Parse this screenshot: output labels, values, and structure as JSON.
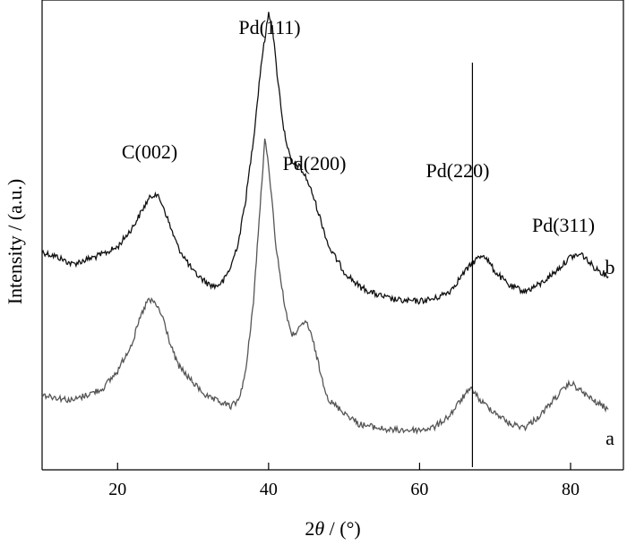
{
  "chart_data": {
    "type": "line",
    "xlabel_parts": {
      "pre": "2",
      "italic": "θ",
      "post": " / (°)"
    },
    "ylabel": "Intensity / (a.u.)",
    "xlim": [
      10,
      87
    ],
    "x_ticks": [
      20,
      40,
      60,
      80
    ],
    "y_ticks_shown": false,
    "grid": false,
    "legend": "none",
    "series": [
      {
        "name": "b",
        "color": "#111111",
        "points": [
          [
            10,
            0.1
          ],
          [
            12,
            0.0
          ],
          [
            14,
            -0.15
          ],
          [
            16,
            -0.05
          ],
          [
            18,
            0.05
          ],
          [
            20,
            0.2
          ],
          [
            22,
            0.6
          ],
          [
            24,
            1.15
          ],
          [
            25,
            1.3
          ],
          [
            26,
            1.05
          ],
          [
            27,
            0.6
          ],
          [
            28,
            0.2
          ],
          [
            30,
            -0.3
          ],
          [
            32,
            -0.55
          ],
          [
            33,
            -0.6
          ],
          [
            34,
            -0.5
          ],
          [
            35,
            -0.2
          ],
          [
            36,
            0.3
          ],
          [
            37,
            1.2
          ],
          [
            38,
            2.4
          ],
          [
            39,
            3.9
          ],
          [
            40,
            4.95
          ],
          [
            40.5,
            4.7
          ],
          [
            41,
            3.9
          ],
          [
            42,
            2.6
          ],
          [
            43,
            1.9
          ],
          [
            44,
            1.85
          ],
          [
            45,
            1.6
          ],
          [
            46,
            1.2
          ],
          [
            47,
            0.7
          ],
          [
            48,
            0.2
          ],
          [
            50,
            -0.3
          ],
          [
            52,
            -0.6
          ],
          [
            54,
            -0.75
          ],
          [
            56,
            -0.85
          ],
          [
            58,
            -0.9
          ],
          [
            60,
            -0.9
          ],
          [
            62,
            -0.85
          ],
          [
            64,
            -0.7
          ],
          [
            66,
            -0.3
          ],
          [
            67.5,
            -0.05
          ],
          [
            68.5,
            0.05
          ],
          [
            70,
            -0.3
          ],
          [
            72,
            -0.6
          ],
          [
            74,
            -0.7
          ],
          [
            76,
            -0.55
          ],
          [
            78,
            -0.3
          ],
          [
            80,
            0.0
          ],
          [
            81.5,
            0.05
          ],
          [
            83,
            -0.2
          ],
          [
            85,
            -0.4
          ]
        ]
      },
      {
        "name": "a",
        "color": "#555555",
        "points": [
          [
            10,
            0.0
          ],
          [
            12,
            -0.05
          ],
          [
            14,
            -0.1
          ],
          [
            16,
            0.0
          ],
          [
            18,
            0.1
          ],
          [
            20,
            0.4
          ],
          [
            22,
            0.9
          ],
          [
            23,
            1.3
          ],
          [
            24,
            1.6
          ],
          [
            25,
            1.55
          ],
          [
            26,
            1.3
          ],
          [
            27,
            0.85
          ],
          [
            28,
            0.5
          ],
          [
            30,
            0.2
          ],
          [
            32,
            -0.05
          ],
          [
            34,
            -0.15
          ],
          [
            35,
            -0.2
          ],
          [
            36,
            -0.1
          ],
          [
            37,
            0.4
          ],
          [
            38,
            1.6
          ],
          [
            39,
            3.4
          ],
          [
            39.5,
            4.3
          ],
          [
            40,
            3.9
          ],
          [
            41,
            2.5
          ],
          [
            42,
            1.6
          ],
          [
            43,
            1.0
          ],
          [
            44,
            1.1
          ],
          [
            45,
            1.25
          ],
          [
            46,
            0.85
          ],
          [
            47,
            0.3
          ],
          [
            48,
            -0.1
          ],
          [
            50,
            -0.3
          ],
          [
            52,
            -0.5
          ],
          [
            54,
            -0.55
          ],
          [
            56,
            -0.6
          ],
          [
            58,
            -0.6
          ],
          [
            60,
            -0.6
          ],
          [
            62,
            -0.55
          ],
          [
            64,
            -0.35
          ],
          [
            66,
            0.0
          ],
          [
            67,
            0.1
          ],
          [
            68,
            -0.1
          ],
          [
            70,
            -0.3
          ],
          [
            72,
            -0.5
          ],
          [
            74,
            -0.55
          ],
          [
            76,
            -0.35
          ],
          [
            78,
            -0.05
          ],
          [
            80,
            0.2
          ],
          [
            81,
            0.1
          ],
          [
            83,
            -0.1
          ],
          [
            85,
            -0.25
          ]
        ]
      }
    ],
    "annotations": [
      {
        "text": "C(002)",
        "x": 25
      },
      {
        "text": "Pd(111)",
        "x": 40
      },
      {
        "text": "Pd(200)",
        "x": 46
      },
      {
        "text": "Pd(220)",
        "x": 67
      },
      {
        "text": "Pd(311)",
        "x": 81
      }
    ],
    "reference_line_x": 67,
    "series_labels": [
      "b",
      "a"
    ]
  }
}
